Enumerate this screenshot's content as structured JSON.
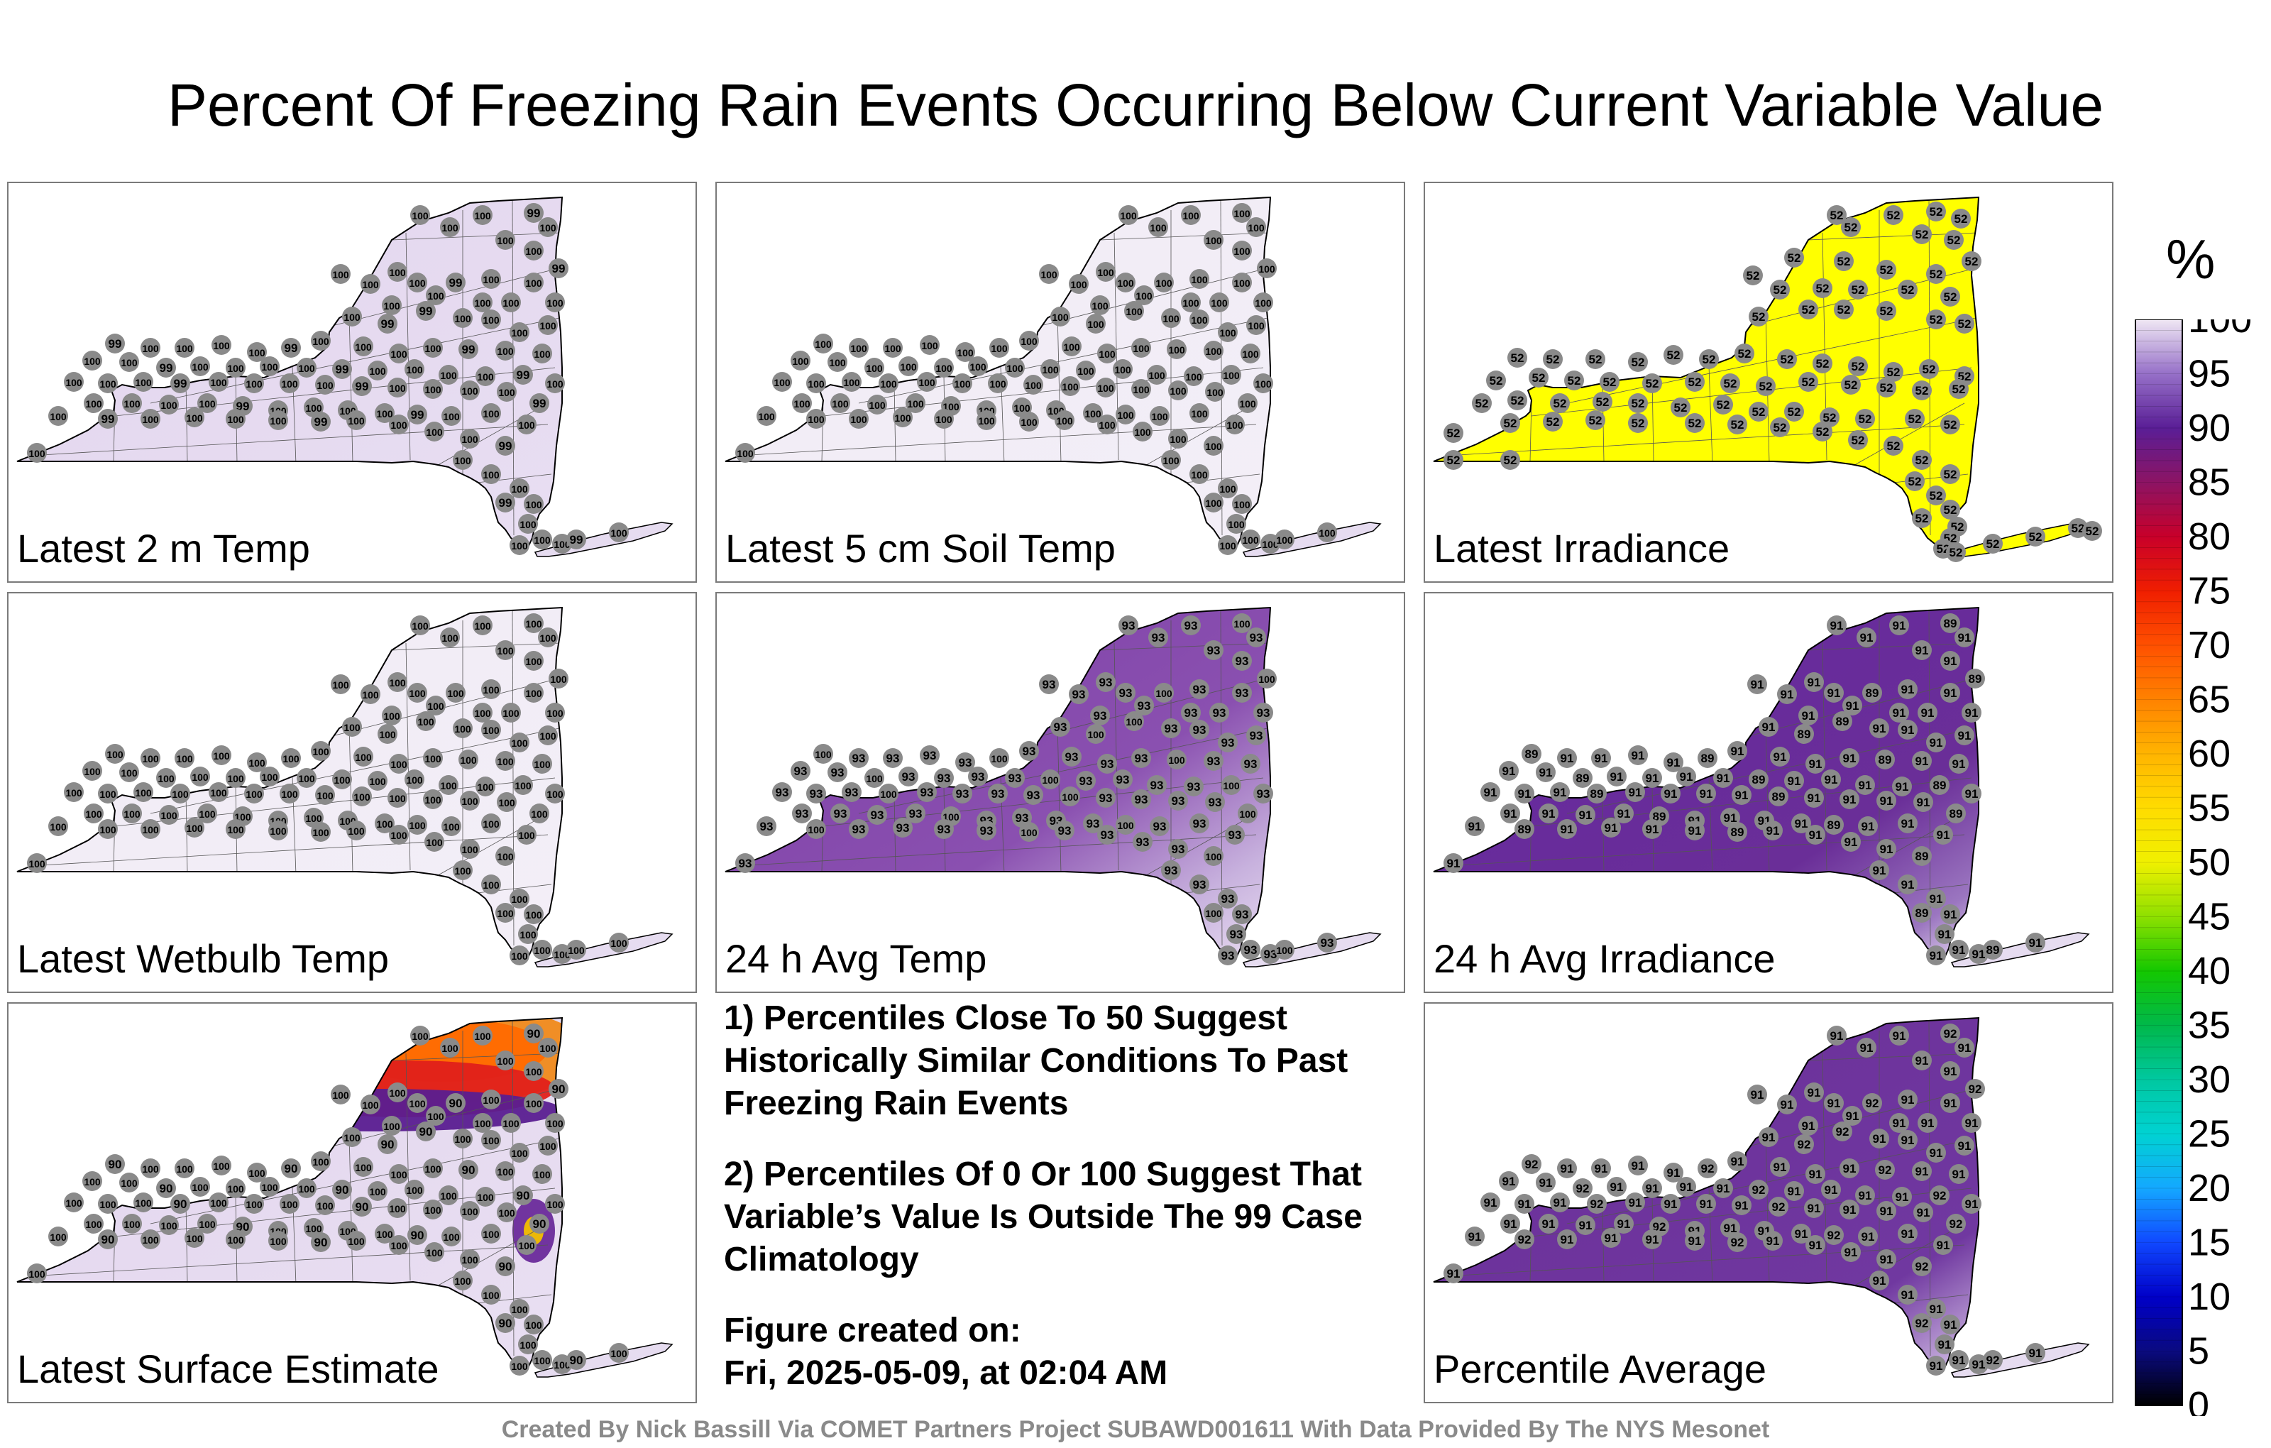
{
  "title": "Percent Of Freezing Rain Events Occurring Below Current Variable Value",
  "colorbar": {
    "unit": "%",
    "ticks": [
      "0",
      "5",
      "10",
      "15",
      "20",
      "25",
      "30",
      "35",
      "40",
      "45",
      "50",
      "55",
      "60",
      "65",
      "70",
      "75",
      "80",
      "85",
      "90",
      "95",
      "100"
    ]
  },
  "panels": [
    {
      "label": "Latest 2 m Temp",
      "fill": "#e4d8ee",
      "value": "100",
      "secondary": "99"
    },
    {
      "label": "Latest 5 cm Soil Temp",
      "fill": "#f1ecf6",
      "value": "100"
    },
    {
      "label": "Latest Irradiance",
      "fill": "#ffff00",
      "value": "52"
    },
    {
      "label": "Latest Wetbulb Temp",
      "fill": "#f1ecf6",
      "value": "100"
    },
    {
      "label": "24 h Avg Temp",
      "fill": "#8246aa",
      "value": "93",
      "secondary": "100"
    },
    {
      "label": "24 h Avg Irradiance",
      "fill": "#6a2a96",
      "value": "91",
      "secondary": "89"
    },
    {
      "label": "Latest Surface Estimate",
      "fill": "#e4d8ee",
      "value": "100",
      "secondary": "90"
    },
    {
      "label": "Percentile Average",
      "fill": "#6a2a96",
      "value": "91",
      "secondary": "92"
    }
  ],
  "notes": {
    "note1": "1) Percentiles Close To 50 Suggest Historically Similar Conditions To Past Freezing Rain Events",
    "note2": "2) Percentiles Of 0 Or 100 Suggest That Variable’s Value Is Outside The 99 Case Climatology",
    "created_label": "Figure created on:",
    "created_date": "Fri, 2025-05-09, at 02:04 AM"
  },
  "credit": "Created By Nick Bassill Via COMET Partners Project SUBAWD001611 With Data Provided By The NYS Mesonet"
}
